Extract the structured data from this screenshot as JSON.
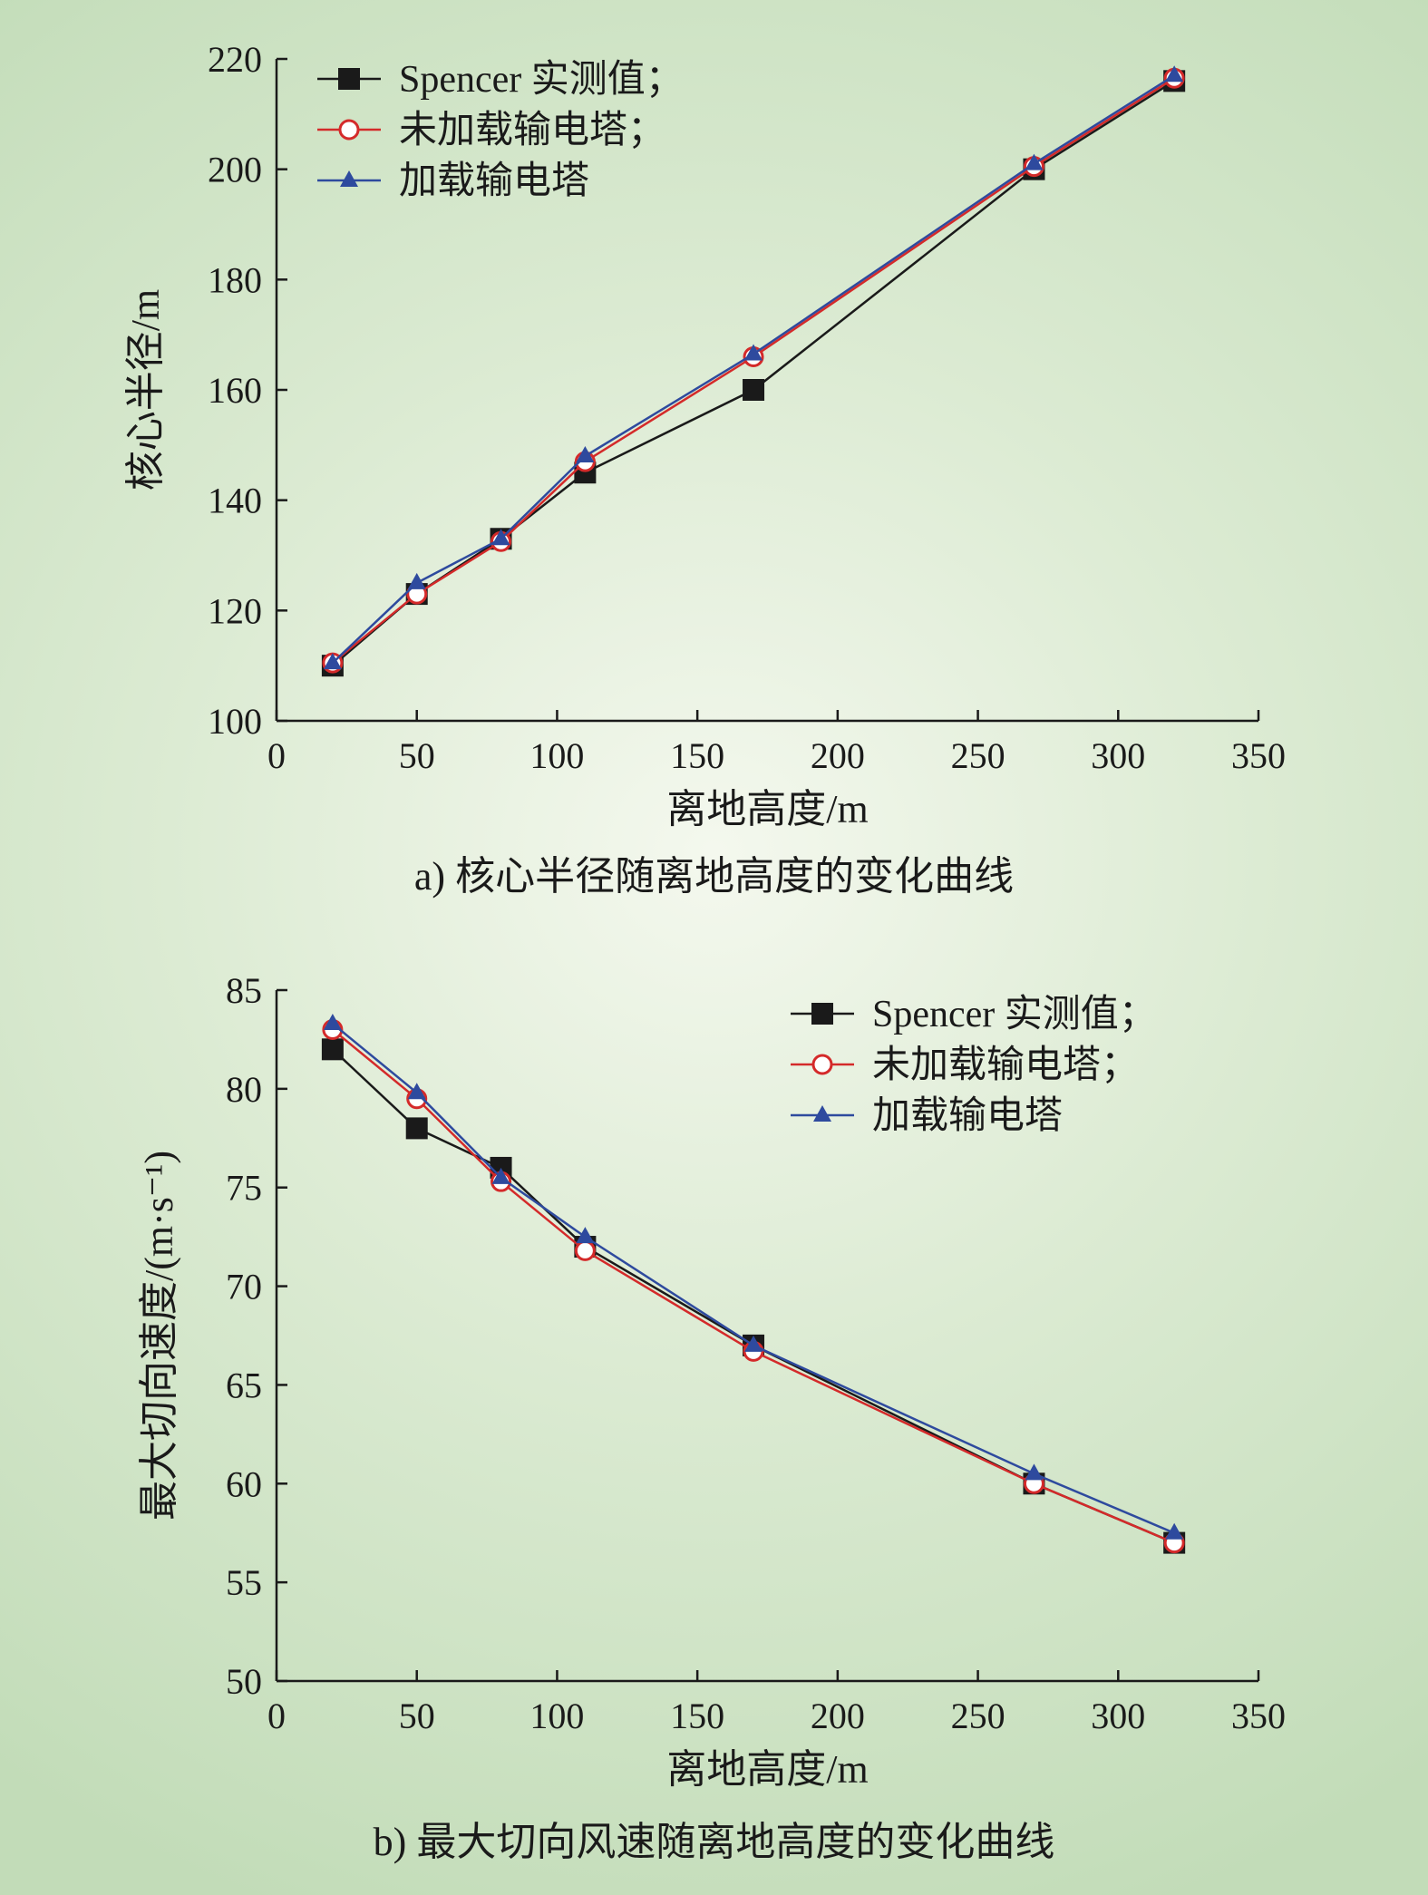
{
  "captions": {
    "a": "a) 核心半径随离地高度的变化曲线",
    "b": "b) 最大切向风速随离地高度的变化曲线"
  },
  "colors": {
    "spencer": "#1a1a1a",
    "unloaded": "#d42a2a",
    "loaded": "#2e4a9e",
    "axis": "#1a1a1a"
  },
  "chart_data": [
    {
      "type": "line",
      "xlabel": "离地高度/m",
      "ylabel": "核心半径/m",
      "xlim": [
        0,
        350
      ],
      "ylim": [
        100,
        220
      ],
      "xticks": [
        0,
        50,
        100,
        150,
        200,
        250,
        300,
        350
      ],
      "yticks": [
        100,
        120,
        140,
        160,
        180,
        200,
        220
      ],
      "grid": false,
      "legend_position": "top-left",
      "x": [
        20,
        50,
        80,
        110,
        170,
        270,
        320
      ],
      "series": [
        {
          "name": "Spencer 实测值；",
          "marker": "square",
          "color_key": "spencer",
          "values": [
            110,
            123,
            133,
            145,
            160,
            200,
            216
          ]
        },
        {
          "name": "未加载输电塔；",
          "marker": "circle",
          "color_key": "unloaded",
          "values": [
            110.5,
            123,
            132.5,
            147,
            166,
            200.5,
            216.5
          ]
        },
        {
          "name": "加载输电塔",
          "marker": "triangle",
          "color_key": "loaded",
          "values": [
            110.5,
            125,
            133,
            148,
            166.5,
            201,
            217
          ]
        }
      ]
    },
    {
      "type": "line",
      "xlabel": "离地高度/m",
      "ylabel": "最大切向速度/(m·s⁻¹)",
      "xlim": [
        0,
        350
      ],
      "ylim": [
        50,
        85
      ],
      "xticks": [
        0,
        50,
        100,
        150,
        200,
        250,
        300,
        350
      ],
      "yticks": [
        50,
        55,
        60,
        65,
        70,
        75,
        80,
        85
      ],
      "grid": false,
      "legend_position": "top-right",
      "x": [
        20,
        50,
        80,
        110,
        170,
        270,
        320
      ],
      "series": [
        {
          "name": "Spencer 实测值；",
          "marker": "square",
          "color_key": "spencer",
          "values": [
            82,
            78,
            76,
            72,
            67,
            60,
            57
          ]
        },
        {
          "name": "未加载输电塔；",
          "marker": "circle",
          "color_key": "unloaded",
          "values": [
            83,
            79.5,
            75.3,
            71.8,
            66.7,
            60,
            57
          ]
        },
        {
          "name": "加载输电塔",
          "marker": "triangle",
          "color_key": "loaded",
          "values": [
            83.3,
            79.8,
            75.5,
            72.5,
            67,
            60.5,
            57.5
          ]
        }
      ]
    }
  ]
}
